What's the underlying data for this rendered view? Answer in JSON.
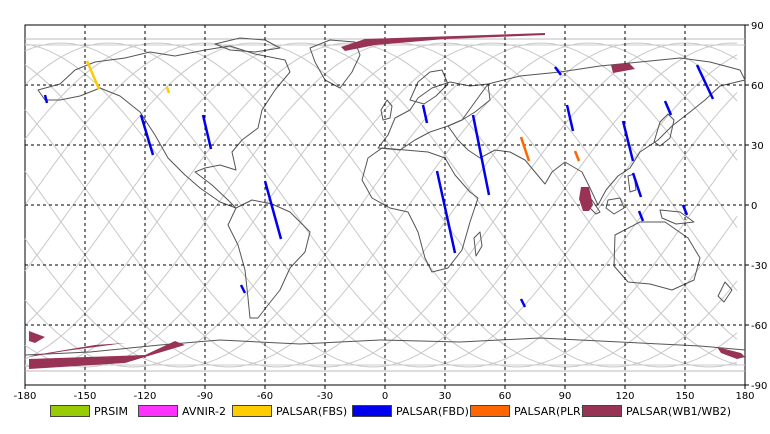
{
  "chart_data": {
    "type": "map",
    "projection": "equirectangular",
    "xlim": [
      -180,
      180
    ],
    "ylim": [
      -90,
      90
    ],
    "x_ticks": [
      "-180",
      "-150",
      "-120",
      "-90",
      "-60",
      "-30",
      "0",
      "30",
      "60",
      "90",
      "120",
      "150",
      "180"
    ],
    "y_ticks": [
      "90",
      "60",
      "30",
      "0",
      "-30",
      "-60",
      "-90"
    ],
    "grid": true,
    "legend": [
      {
        "label": "PRSIM",
        "color": "#99cc00"
      },
      {
        "label": "AVNIR-2",
        "color": "#ff33ff"
      },
      {
        "label": "PALSAR(FBS)",
        "color": "#ffcc00"
      },
      {
        "label": "PALSAR(FBD)",
        "color": "#0000ee"
      },
      {
        "label": "PALSAR(PLR)",
        "color": "#ff6600"
      },
      {
        "label": "PALSAR(WB1/WB2)",
        "color": "#993355"
      }
    ],
    "strips": [
      {
        "mode": "PALSAR(FBS)",
        "points": [
          [
            -149,
            72
          ],
          [
            -143,
            58
          ]
        ]
      },
      {
        "mode": "PALSAR(FBS)",
        "points": [
          [
            -109,
            59
          ],
          [
            -108,
            56
          ]
        ]
      },
      {
        "mode": "PALSAR(FBD)",
        "points": [
          [
            -170,
            55
          ],
          [
            -169,
            51
          ]
        ]
      },
      {
        "mode": "PALSAR(FBD)",
        "points": [
          [
            -122,
            45
          ],
          [
            -116,
            25
          ]
        ]
      },
      {
        "mode": "PALSAR(FBD)",
        "points": [
          [
            -91,
            45
          ],
          [
            -87,
            28
          ]
        ]
      },
      {
        "mode": "PALSAR(FBD)",
        "points": [
          [
            -60,
            12
          ],
          [
            -52,
            -17
          ]
        ]
      },
      {
        "mode": "PALSAR(FBD)",
        "points": [
          [
            -72,
            -40
          ],
          [
            -70,
            -44
          ]
        ]
      },
      {
        "mode": "PALSAR(FBD)",
        "points": [
          [
            19,
            50
          ],
          [
            21,
            41
          ]
        ]
      },
      {
        "mode": "PALSAR(FBD)",
        "points": [
          [
            44,
            45
          ],
          [
            52,
            5
          ]
        ]
      },
      {
        "mode": "PALSAR(FBD)",
        "points": [
          [
            26,
            17
          ],
          [
            35,
            -24
          ]
        ]
      },
      {
        "mode": "PALSAR(FBD)",
        "points": [
          [
            68,
            -47
          ],
          [
            70,
            -51
          ]
        ]
      },
      {
        "mode": "PALSAR(FBD)",
        "points": [
          [
            85,
            69
          ],
          [
            88,
            65
          ]
        ]
      },
      {
        "mode": "PALSAR(FBD)",
        "points": [
          [
            91,
            50
          ],
          [
            94,
            37
          ]
        ]
      },
      {
        "mode": "PALSAR(FBD)",
        "points": [
          [
            119,
            42
          ],
          [
            124,
            22
          ]
        ]
      },
      {
        "mode": "PALSAR(FBD)",
        "points": [
          [
            124,
            16
          ],
          [
            128,
            4
          ]
        ]
      },
      {
        "mode": "PALSAR(FBD)",
        "points": [
          [
            127,
            -3
          ],
          [
            129,
            -8
          ]
        ]
      },
      {
        "mode": "PALSAR(FBD)",
        "points": [
          [
            140,
            52
          ],
          [
            143,
            45
          ]
        ]
      },
      {
        "mode": "PALSAR(FBD)",
        "points": [
          [
            156,
            70
          ],
          [
            164,
            53
          ]
        ]
      },
      {
        "mode": "PALSAR(FBD)",
        "points": [
          [
            149,
            0
          ],
          [
            151,
            -5
          ]
        ]
      },
      {
        "mode": "PALSAR(PLR)",
        "points": [
          [
            68,
            34
          ],
          [
            72,
            22
          ]
        ]
      },
      {
        "mode": "PALSAR(PLR)",
        "points": [
          [
            95,
            27
          ],
          [
            97,
            22
          ]
        ]
      }
    ],
    "swaths": [
      {
        "mode": "PALSAR(WB1/WB2)",
        "points": [
          [
            -22,
            79
          ],
          [
            -10,
            83
          ],
          [
            20,
            84
          ],
          [
            80,
            86
          ],
          [
            80,
            85
          ],
          [
            30,
            83
          ],
          [
            -5,
            80
          ],
          [
            -20,
            77
          ]
        ]
      },
      {
        "mode": "PALSAR(WB1/WB2)",
        "points": [
          [
            113,
            70
          ],
          [
            122,
            71
          ],
          [
            125,
            68
          ],
          [
            114,
            66
          ]
        ]
      },
      {
        "mode": "PALSAR(WB1/WB2)",
        "points": [
          [
            98,
            9
          ],
          [
            102,
            9
          ],
          [
            104,
            0
          ],
          [
            102,
            -3
          ],
          [
            99,
            -3
          ],
          [
            97,
            3
          ]
        ]
      },
      {
        "mode": "PALSAR(WB1/WB2)",
        "points": [
          [
            -178,
            -63
          ],
          [
            -170,
            -66
          ],
          [
            -175,
            -69
          ],
          [
            -178,
            -68
          ]
        ]
      },
      {
        "mode": "PALSAR(WB1/WB2)",
        "points": [
          [
            -175,
            -75
          ],
          [
            -145,
            -70
          ],
          [
            -130,
            -69
          ],
          [
            -160,
            -73
          ],
          [
            -178,
            -76
          ]
        ]
      },
      {
        "mode": "PALSAR(WB1/WB2)",
        "points": [
          [
            -178,
            -77
          ],
          [
            -120,
            -75
          ],
          [
            -105,
            -68
          ],
          [
            -100,
            -70
          ],
          [
            -130,
            -79
          ],
          [
            -178,
            -82
          ]
        ]
      },
      {
        "mode": "PALSAR(WB1/WB2)",
        "points": [
          [
            166,
            -71
          ],
          [
            178,
            -74
          ],
          [
            180,
            -76
          ],
          [
            176,
            -77
          ],
          [
            168,
            -74
          ]
        ]
      }
    ]
  }
}
